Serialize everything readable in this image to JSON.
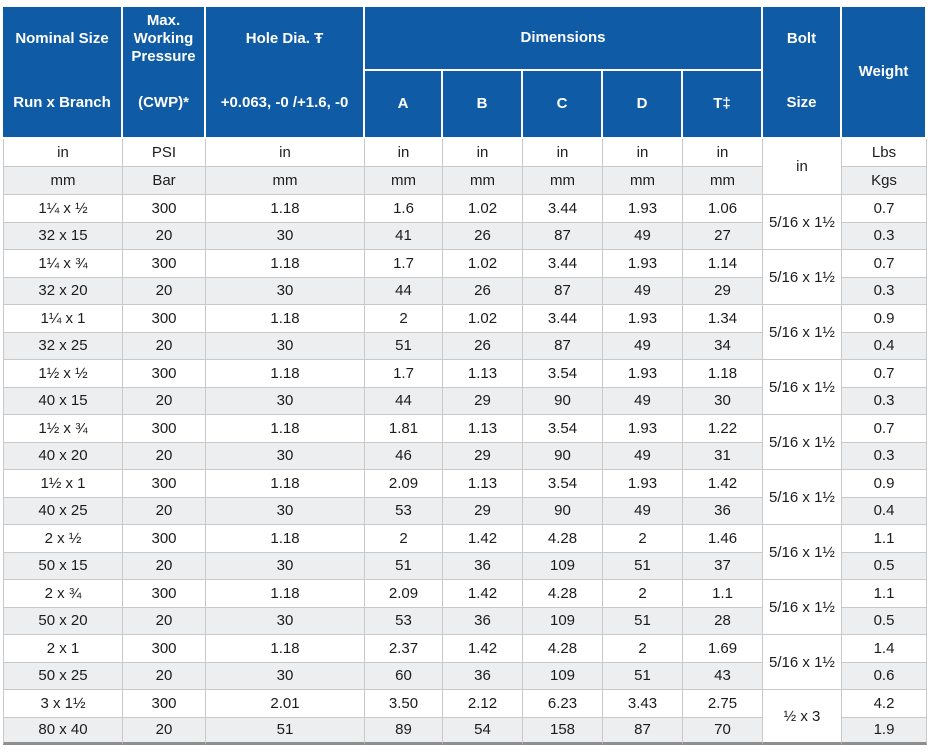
{
  "colors": {
    "header_bg": "#0f5ba5",
    "header_text": "#ffffff",
    "band_bg": "#edeef0",
    "grid_border": "#c9c9c9",
    "bottom_border": "#8e8e8e"
  },
  "table": {
    "header": {
      "col1_top": "Nominal Size",
      "col1_bottom": "Run x Branch",
      "col2_top": "Max. Working Pressure",
      "col2_bottom": "(CWP)*",
      "col3_top": "Hole Dia. Ŧ",
      "col3_bottom": "+0.063, -0 /+1.6, -0",
      "dimensions": "Dimensions",
      "dim_cols": [
        "A",
        "B",
        "C",
        "D",
        "T‡"
      ],
      "bolt_top": "Bolt",
      "bolt_bottom": "Size",
      "weight": "Weight"
    },
    "units": {
      "row_imperial": [
        "in",
        "PSI",
        "in",
        "in",
        "in",
        "in",
        "in",
        "in"
      ],
      "bolt_unit": "in",
      "weight_imperial": "Lbs",
      "row_metric": [
        "mm",
        "Bar",
        "mm",
        "mm",
        "mm",
        "mm",
        "mm",
        "mm"
      ],
      "weight_metric": "Kgs"
    },
    "pairs": [
      {
        "imperial": [
          "1¼ x ½",
          "300",
          "1.18",
          "1.6",
          "1.02",
          "3.44",
          "1.93",
          "1.06"
        ],
        "metric": [
          "32 x 15",
          "20",
          "30",
          "41",
          "26",
          "87",
          "49",
          "27"
        ],
        "bolt": "5/16 x 1½",
        "weight_lbs": "0.7",
        "weight_kgs": "0.3"
      },
      {
        "imperial": [
          "1¼ x ¾",
          "300",
          "1.18",
          "1.7",
          "1.02",
          "3.44",
          "1.93",
          "1.14"
        ],
        "metric": [
          "32 x 20",
          "20",
          "30",
          "44",
          "26",
          "87",
          "49",
          "29"
        ],
        "bolt": "5/16 x 1½",
        "weight_lbs": "0.7",
        "weight_kgs": "0.3"
      },
      {
        "imperial": [
          "1¼ x 1",
          "300",
          "1.18",
          "2",
          "1.02",
          "3.44",
          "1.93",
          "1.34"
        ],
        "metric": [
          "32 x 25",
          "20",
          "30",
          "51",
          "26",
          "87",
          "49",
          "34"
        ],
        "bolt": "5/16 x 1½",
        "weight_lbs": "0.9",
        "weight_kgs": "0.4"
      },
      {
        "imperial": [
          "1½ x ½",
          "300",
          "1.18",
          "1.7",
          "1.13",
          "3.54",
          "1.93",
          "1.18"
        ],
        "metric": [
          "40 x 15",
          "20",
          "30",
          "44",
          "29",
          "90",
          "49",
          "30"
        ],
        "bolt": "5/16 x 1½",
        "weight_lbs": "0.7",
        "weight_kgs": "0.3"
      },
      {
        "imperial": [
          "1½ x ¾",
          "300",
          "1.18",
          "1.81",
          "1.13",
          "3.54",
          "1.93",
          "1.22"
        ],
        "metric": [
          "40 x 20",
          "20",
          "30",
          "46",
          "29",
          "90",
          "49",
          "31"
        ],
        "bolt": "5/16 x 1½",
        "weight_lbs": "0.7",
        "weight_kgs": "0.3"
      },
      {
        "imperial": [
          "1½ x 1",
          "300",
          "1.18",
          "2.09",
          "1.13",
          "3.54",
          "1.93",
          "1.42"
        ],
        "metric": [
          "40 x 25",
          "20",
          "30",
          "53",
          "29",
          "90",
          "49",
          "36"
        ],
        "bolt": "5/16 x 1½",
        "weight_lbs": "0.9",
        "weight_kgs": "0.4"
      },
      {
        "imperial": [
          "2 x ½",
          "300",
          "1.18",
          "2",
          "1.42",
          "4.28",
          "2",
          "1.46"
        ],
        "metric": [
          "50 x 15",
          "20",
          "30",
          "51",
          "36",
          "109",
          "51",
          "37"
        ],
        "bolt": "5/16 x 1½",
        "weight_lbs": "1.1",
        "weight_kgs": "0.5"
      },
      {
        "imperial": [
          "2 x ¾",
          "300",
          "1.18",
          "2.09",
          "1.42",
          "4.28",
          "2",
          "1.1"
        ],
        "metric": [
          "50 x 20",
          "20",
          "30",
          "53",
          "36",
          "109",
          "51",
          "28"
        ],
        "bolt": "5/16 x 1½",
        "weight_lbs": "1.1",
        "weight_kgs": "0.5"
      },
      {
        "imperial": [
          "2 x 1",
          "300",
          "1.18",
          "2.37",
          "1.42",
          "4.28",
          "2",
          "1.69"
        ],
        "metric": [
          "50 x 25",
          "20",
          "30",
          "60",
          "36",
          "109",
          "51",
          "43"
        ],
        "bolt": "5/16 x 1½",
        "weight_lbs": "1.4",
        "weight_kgs": "0.6"
      },
      {
        "imperial": [
          "3 x 1½",
          "300",
          "2.01",
          "3.50",
          "2.12",
          "6.23",
          "3.43",
          "2.75"
        ],
        "metric": [
          "80 x 40",
          "20",
          "51",
          "89",
          "54",
          "158",
          "87",
          "70"
        ],
        "bolt": "½ x 3",
        "weight_lbs": "4.2",
        "weight_kgs": "1.9"
      }
    ]
  }
}
